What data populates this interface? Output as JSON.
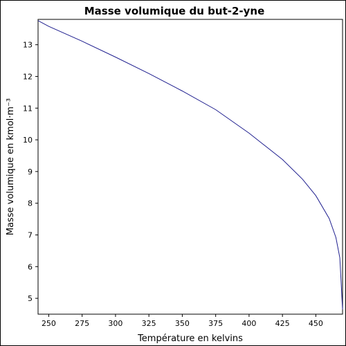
{
  "chart_data": {
    "type": "line",
    "title": "Masse volumique du but-2-yne",
    "xlabel": "Température en kelvins",
    "ylabel": "Masse volumique en kmol·m⁻³",
    "xlim": [
      242,
      470
    ],
    "ylim": [
      4.5,
      13.8
    ],
    "x_ticks": [
      250,
      275,
      300,
      325,
      350,
      375,
      400,
      425,
      450
    ],
    "y_ticks": [
      5,
      6,
      7,
      8,
      9,
      10,
      11,
      12,
      13
    ],
    "grid": false,
    "legend": "none",
    "line_color": "#1f1f8f",
    "series": [
      {
        "x": [
          242,
          250,
          275,
          300,
          325,
          350,
          375,
          400,
          425,
          440,
          450,
          460,
          465,
          468,
          470
        ],
        "values": [
          13.76,
          13.58,
          13.11,
          12.61,
          12.09,
          11.54,
          10.95,
          10.21,
          9.38,
          8.76,
          8.24,
          7.52,
          6.92,
          6.28,
          4.65
        ]
      }
    ]
  }
}
